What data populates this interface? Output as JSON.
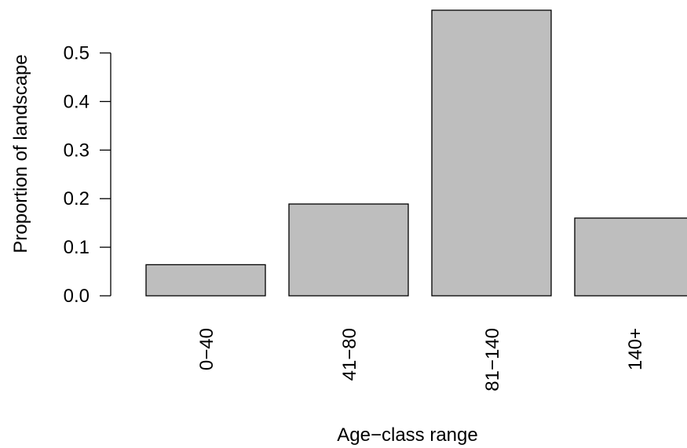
{
  "chart_data": {
    "type": "bar",
    "title": "",
    "xlabel": "Age−class range",
    "ylabel": "Proportion of landscape",
    "categories": [
      "0−40",
      "41−80",
      "81−140",
      "140+"
    ],
    "values": [
      0.064,
      0.189,
      0.588,
      0.16
    ],
    "ylim": [
      0,
      0.59
    ],
    "yticks": [
      0.0,
      0.1,
      0.2,
      0.3,
      0.4,
      0.5
    ],
    "ytick_labels": [
      "0.0",
      "0.1",
      "0.2",
      "0.3",
      "0.4",
      "0.5"
    ],
    "grid": false,
    "bar_color": "#bebebe",
    "bar_edge_color": "#000000"
  }
}
